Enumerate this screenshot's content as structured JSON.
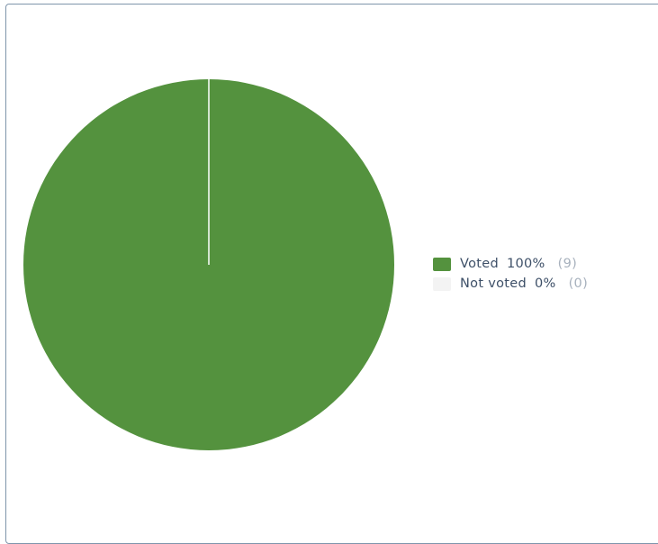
{
  "chart_data": {
    "type": "pie",
    "categories": [
      "Voted",
      "Not voted"
    ],
    "values": [
      9,
      0
    ],
    "percent_labels": [
      "100%",
      "0%"
    ],
    "count_labels": [
      "(9)",
      "(0)"
    ],
    "colors": [
      "#54923e",
      "#f3f3f3"
    ],
    "legend_position": "right"
  }
}
